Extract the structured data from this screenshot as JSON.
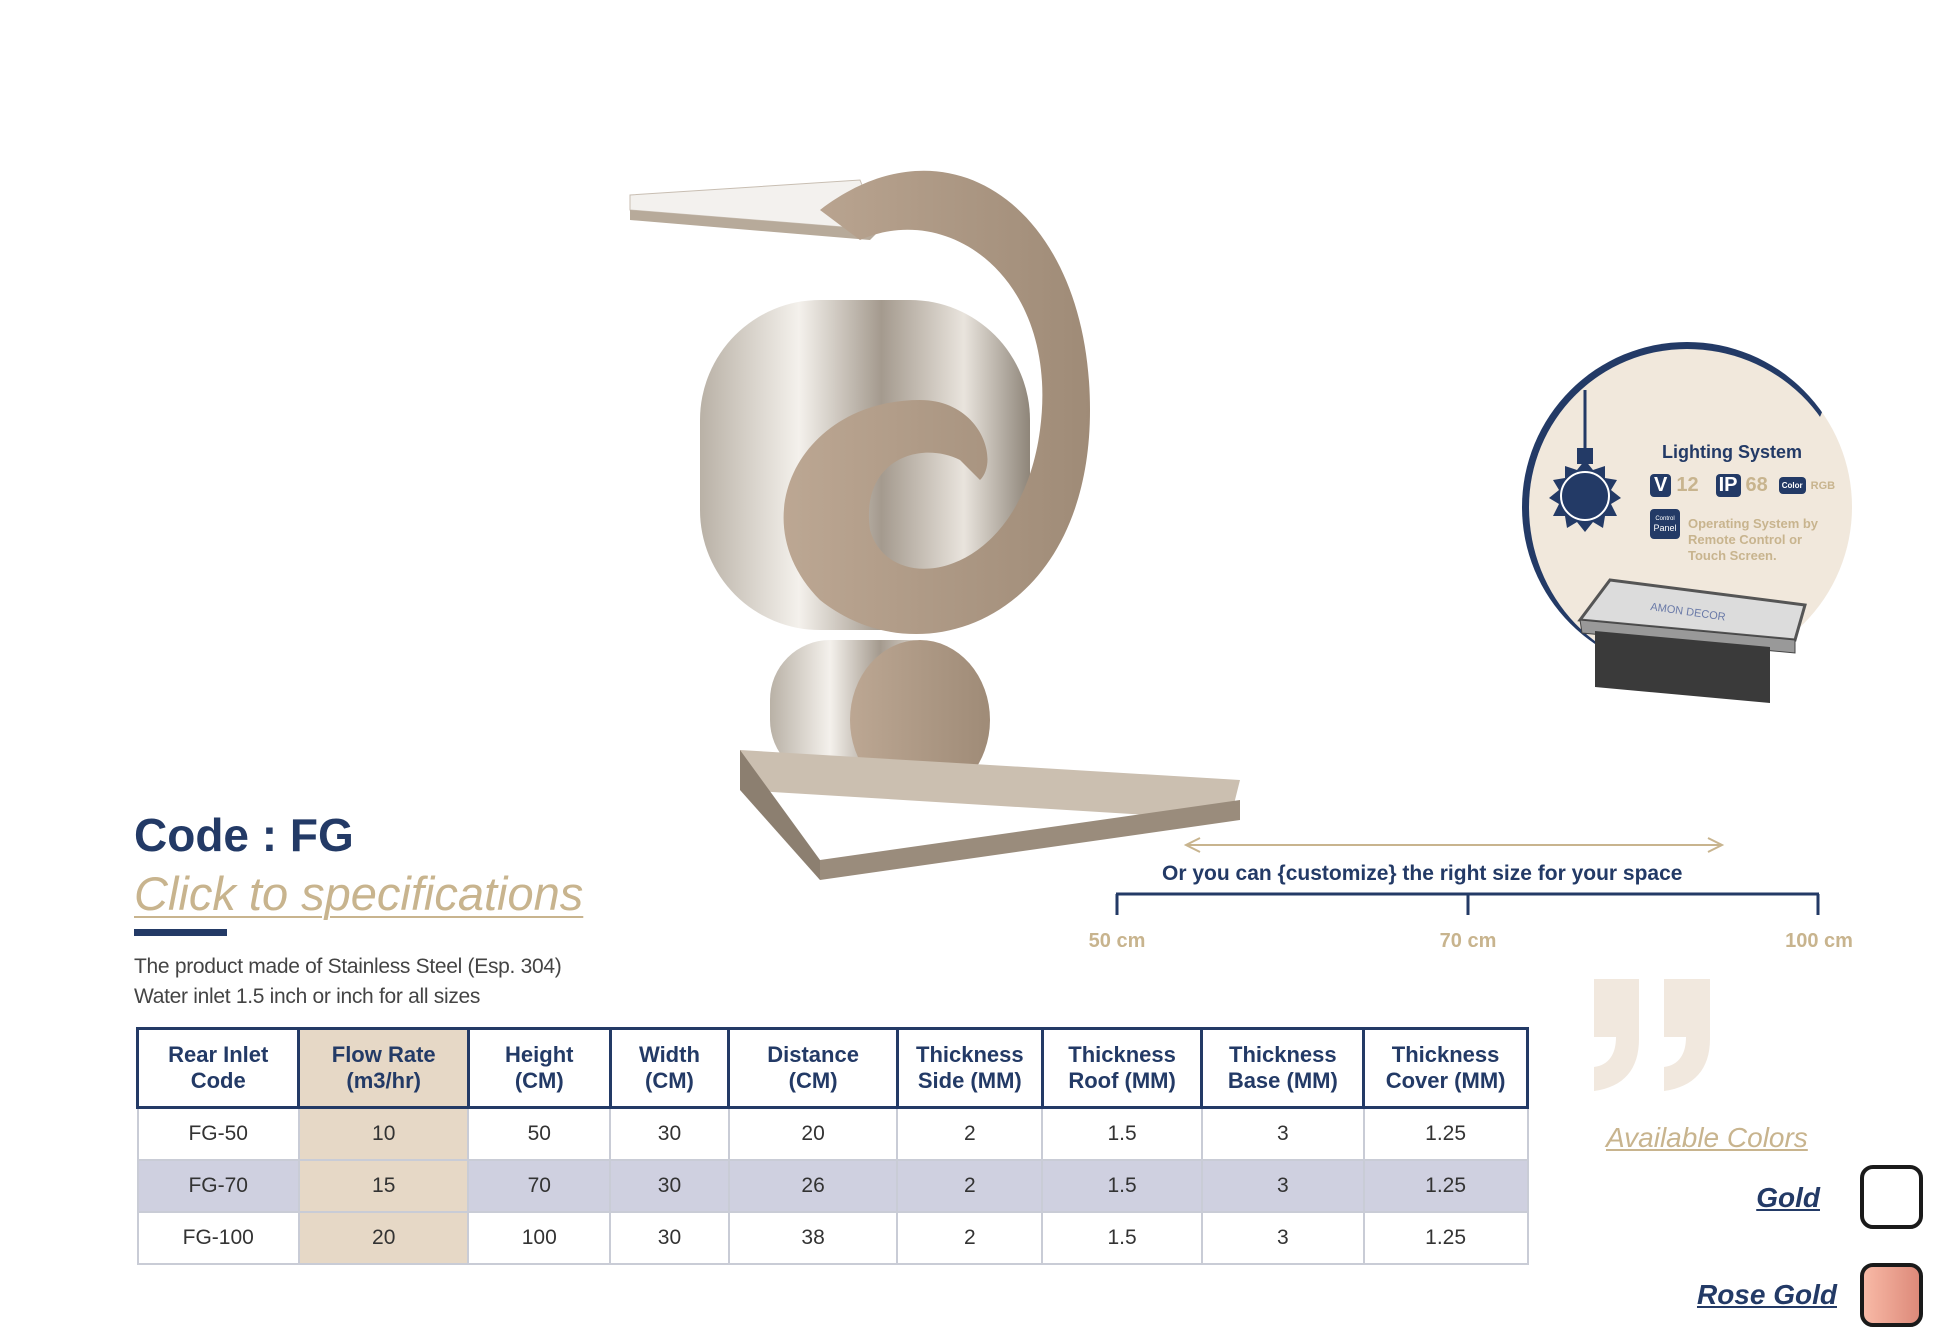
{
  "product": {
    "code": "Code : FG",
    "spec_link": "Click to specifications",
    "description": [
      "The product made of Stainless Steel (Esp. 304)",
      "Water inlet 1.5 inch or inch for all sizes"
    ]
  },
  "table": {
    "headers": [
      [
        "Rear Inlet",
        "Code"
      ],
      [
        "Flow Rate",
        "(m3/hr)"
      ],
      [
        "Height",
        "(CM)"
      ],
      [
        "Width",
        "(CM)"
      ],
      [
        "Distance",
        "(CM)"
      ],
      [
        "Thickness",
        "Side (MM)"
      ],
      [
        "Thickness",
        "Roof (MM)"
      ],
      [
        "Thickness",
        "Base (MM)"
      ],
      [
        "Thickness",
        "Cover (MM)"
      ]
    ],
    "rows": [
      [
        "FG-50",
        "10",
        "50",
        "30",
        "20",
        "2",
        "1.5",
        "3",
        "1.25"
      ],
      [
        "FG-70",
        "15",
        "70",
        "30",
        "26",
        "2",
        "1.5",
        "3",
        "1.25"
      ],
      [
        "FG-100",
        "20",
        "100",
        "30",
        "38",
        "2",
        "1.5",
        "3",
        "1.25"
      ]
    ]
  },
  "customize": {
    "text": "Or you can {customize} the right size for your space",
    "sizes": [
      "50 cm",
      "70 cm",
      "100 cm"
    ]
  },
  "lighting": {
    "title": "Lighting System",
    "v_badge": "V",
    "voltage": "12",
    "ip_badge": "IP",
    "ip": "68",
    "color_badge": "Color",
    "color": "RGB",
    "panel_badge": [
      "Control",
      "Panel"
    ],
    "operating": [
      "Operating System by",
      "Remote Control or",
      "Touch Screen."
    ],
    "box_brand": "AMON DECOR"
  },
  "colors": {
    "title": "Available Colors",
    "options": [
      {
        "name": "Gold",
        "swatch": "#ffffff"
      },
      {
        "name": "Rose Gold",
        "swatch": "#e99a88"
      }
    ]
  },
  "theme": {
    "navy": "#233a66",
    "gold": "#c8b48e",
    "flow_col": "#e6d8c6",
    "alt_row": "#cfd0e0"
  }
}
